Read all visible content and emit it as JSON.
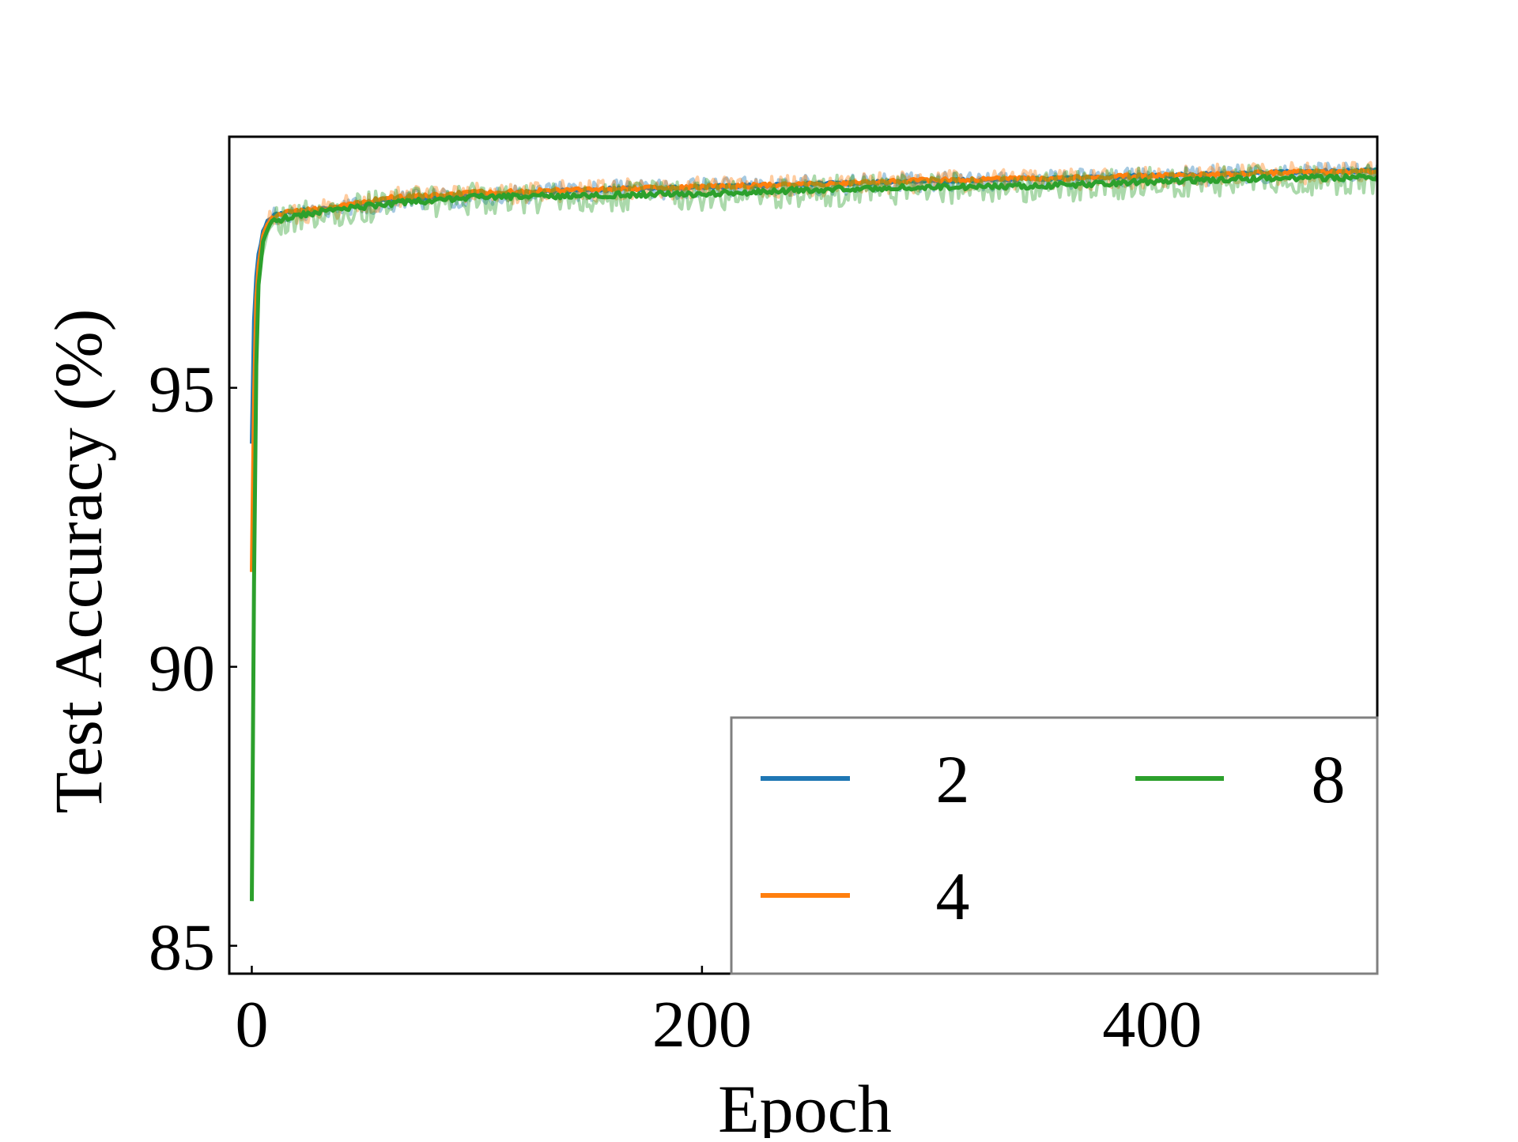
{
  "chart_data": {
    "type": "line",
    "title": "",
    "xlabel": "Epoch",
    "ylabel": "Test Accuracy (%)",
    "xlim": [
      -10,
      500
    ],
    "ylim": [
      84.5,
      99.5
    ],
    "xticks": [
      0,
      200,
      400
    ],
    "yticks": [
      85,
      90,
      95
    ],
    "grid": false,
    "legend": {
      "placement": "lower-right",
      "columns": 2,
      "entries": [
        "2",
        "4",
        "8"
      ]
    },
    "series": [
      {
        "name": "2",
        "color": "#1f77b4",
        "raw_noise": 0.18,
        "points": [
          [
            0,
            94.0
          ],
          [
            1,
            96.2
          ],
          [
            2,
            97.0
          ],
          [
            3,
            97.4
          ],
          [
            5,
            97.8
          ],
          [
            8,
            98.05
          ],
          [
            15,
            98.15
          ],
          [
            30,
            98.2
          ],
          [
            60,
            98.35
          ],
          [
            100,
            98.45
          ],
          [
            150,
            98.55
          ],
          [
            200,
            98.6
          ],
          [
            250,
            98.65
          ],
          [
            300,
            98.7
          ],
          [
            350,
            98.75
          ],
          [
            400,
            98.8
          ],
          [
            450,
            98.85
          ],
          [
            500,
            98.9
          ]
        ]
      },
      {
        "name": "4",
        "color": "#ff7f0e",
        "raw_noise": 0.2,
        "points": [
          [
            0,
            91.7
          ],
          [
            1,
            94.8
          ],
          [
            2,
            96.6
          ],
          [
            3,
            97.2
          ],
          [
            5,
            97.75
          ],
          [
            8,
            98.0
          ],
          [
            15,
            98.15
          ],
          [
            30,
            98.2
          ],
          [
            60,
            98.4
          ],
          [
            100,
            98.5
          ],
          [
            150,
            98.55
          ],
          [
            200,
            98.6
          ],
          [
            250,
            98.65
          ],
          [
            300,
            98.72
          ],
          [
            350,
            98.75
          ],
          [
            400,
            98.8
          ],
          [
            450,
            98.85
          ],
          [
            500,
            98.88
          ]
        ]
      },
      {
        "name": "8",
        "color": "#2ca02c",
        "raw_noise": 0.28,
        "points": [
          [
            0,
            85.8
          ],
          [
            1,
            91.5
          ],
          [
            2,
            95.4
          ],
          [
            3,
            96.8
          ],
          [
            5,
            97.6
          ],
          [
            8,
            97.95
          ],
          [
            15,
            98.05
          ],
          [
            30,
            98.15
          ],
          [
            60,
            98.3
          ],
          [
            100,
            98.42
          ],
          [
            150,
            98.45
          ],
          [
            200,
            98.48
          ],
          [
            250,
            98.55
          ],
          [
            300,
            98.6
          ],
          [
            350,
            98.62
          ],
          [
            400,
            98.7
          ],
          [
            450,
            98.75
          ],
          [
            500,
            98.78
          ]
        ]
      }
    ]
  }
}
